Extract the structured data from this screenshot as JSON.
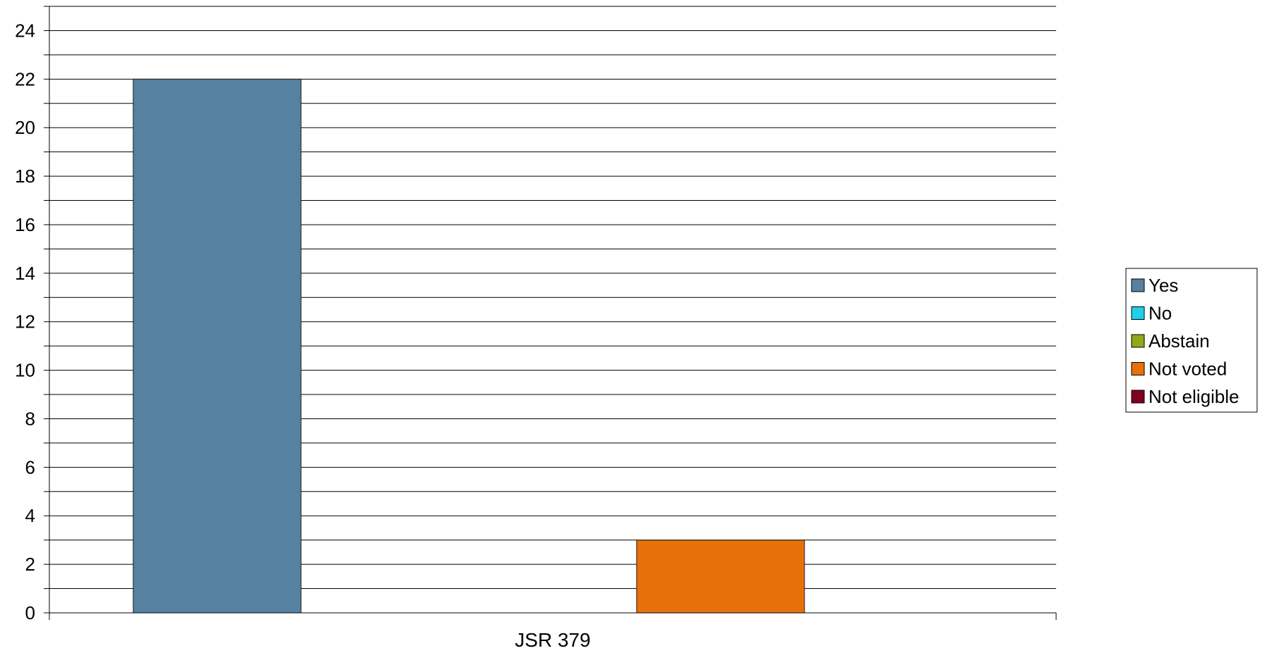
{
  "chart_data": {
    "type": "bar",
    "categories": [
      "JSR 379"
    ],
    "series": [
      {
        "name": "Yes",
        "values": [
          22
        ],
        "color": "#5681a0"
      },
      {
        "name": "No",
        "values": [
          0
        ],
        "color": "#1fd0e8"
      },
      {
        "name": "Abstain",
        "values": [
          0
        ],
        "color": "#91a817"
      },
      {
        "name": "Not voted",
        "values": [
          3
        ],
        "color": "#e8700a"
      },
      {
        "name": "Not eligible",
        "values": [
          0
        ],
        "color": "#800020"
      }
    ],
    "ylim": [
      0,
      25
    ],
    "yticks": [
      0,
      2,
      4,
      6,
      8,
      10,
      12,
      14,
      16,
      18,
      20,
      22,
      24
    ],
    "grid": true,
    "legend": "right"
  }
}
